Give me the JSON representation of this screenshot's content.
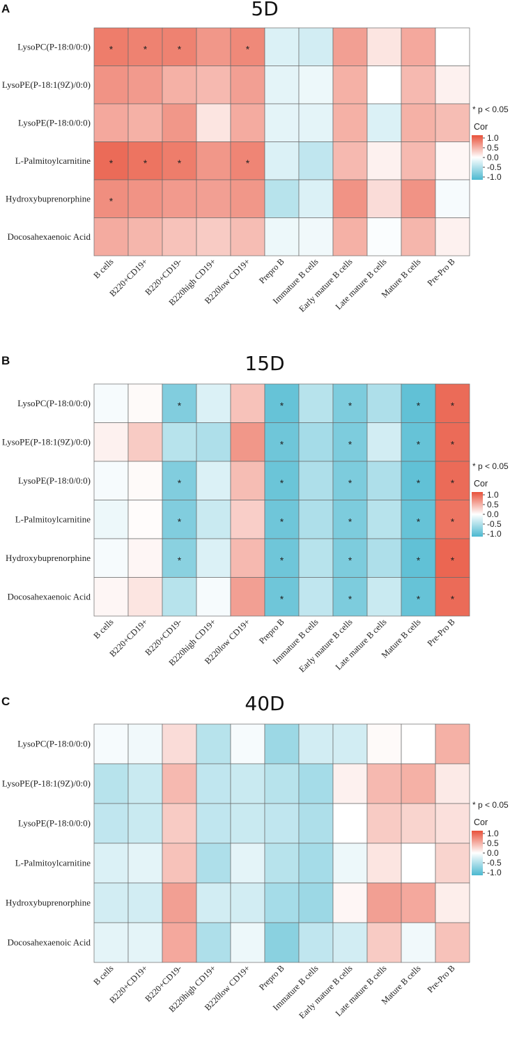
{
  "chart_data": [
    {
      "type": "heatmap",
      "panel": "A",
      "title": "5D",
      "rows": [
        "LysoPC(P-18:0/0:0)",
        "LysoPE(P-18:1(9Z)/0:0)",
        "LysoPE(P-18:0/0:0)",
        "L-Palmitoylcarnitine",
        "Hydroxybuprenorphine",
        "Docosahexaenoic Acid"
      ],
      "columns": [
        "B cells",
        "B220+CD19+",
        "B220+CD19-",
        "B220high CD19+",
        "B220low CD19+",
        "Prepro B",
        "Immature B cells",
        "Early mature B cells",
        "Late mature B cells",
        "Mature B cells",
        "Pre-Pro B"
      ],
      "values": [
        [
          0.75,
          0.72,
          0.72,
          0.6,
          0.68,
          -0.2,
          -0.25,
          0.55,
          0.15,
          0.5,
          0.0
        ],
        [
          0.62,
          0.58,
          0.45,
          0.4,
          0.55,
          -0.15,
          -0.1,
          0.45,
          0.0,
          0.4,
          0.08
        ],
        [
          0.5,
          0.45,
          0.6,
          0.15,
          0.48,
          -0.15,
          -0.15,
          0.45,
          -0.2,
          0.45,
          0.38
        ],
        [
          0.85,
          0.8,
          0.75,
          0.6,
          0.7,
          -0.2,
          -0.35,
          0.4,
          0.08,
          0.4,
          0.05
        ],
        [
          0.65,
          0.62,
          0.58,
          0.55,
          0.6,
          -0.4,
          -0.2,
          0.62,
          0.2,
          0.62,
          -0.05
        ],
        [
          0.48,
          0.42,
          0.35,
          0.3,
          0.38,
          -0.1,
          -0.08,
          0.45,
          -0.03,
          0.42,
          0.08
        ]
      ],
      "significant": [
        [
          true,
          true,
          true,
          false,
          true,
          false,
          false,
          false,
          false,
          false,
          false
        ],
        [
          false,
          false,
          false,
          false,
          false,
          false,
          false,
          false,
          false,
          false,
          false
        ],
        [
          false,
          false,
          false,
          false,
          false,
          false,
          false,
          false,
          false,
          false,
          false
        ],
        [
          true,
          true,
          true,
          false,
          true,
          false,
          false,
          false,
          false,
          false,
          false
        ],
        [
          true,
          false,
          false,
          false,
          false,
          false,
          false,
          false,
          false,
          false,
          false
        ],
        [
          false,
          false,
          false,
          false,
          false,
          false,
          false,
          false,
          false,
          false,
          false
        ]
      ],
      "significance_note": "* p < 0.05",
      "legend": {
        "title": "Cor",
        "ticks": [
          "1.0",
          "0.5",
          "0.0",
          "-0.5",
          "-1.0"
        ],
        "placement": "right"
      },
      "colors": {
        "high": "#e8513a",
        "mid": "#ffffff",
        "low": "#4bb8d0"
      }
    },
    {
      "type": "heatmap",
      "panel": "B",
      "title": "15D",
      "rows": [
        "LysoPC(P-18:0/0:0)",
        "LysoPE(P-18:1(9Z)/0:0)",
        "LysoPE(P-18:0/0:0)",
        "L-Palmitoylcarnitine",
        "Hydroxybuprenorphine",
        "Docosahexaenoic Acid"
      ],
      "columns": [
        "B cells",
        "B220+CD19+",
        "B220+CD19-",
        "B220high CD19+",
        "B220low CD19+",
        "Prepro B",
        "Immature B cells",
        "Early mature B cells",
        "Late mature B cells",
        "Mature B cells",
        "Pre-Pro B"
      ],
      "values": [
        [
          -0.05,
          0.03,
          -0.7,
          -0.2,
          0.35,
          -0.85,
          -0.4,
          -0.72,
          -0.45,
          -0.88,
          0.85
        ],
        [
          0.08,
          0.3,
          -0.4,
          -0.45,
          0.6,
          -0.8,
          -0.5,
          -0.72,
          -0.25,
          -0.85,
          0.85
        ],
        [
          -0.05,
          0.03,
          -0.7,
          -0.2,
          0.38,
          -0.82,
          -0.45,
          -0.72,
          -0.45,
          -0.88,
          0.85
        ],
        [
          -0.1,
          0.02,
          -0.7,
          -0.3,
          0.28,
          -0.8,
          -0.45,
          -0.72,
          -0.4,
          -0.85,
          0.8
        ],
        [
          -0.05,
          0.05,
          -0.65,
          -0.2,
          0.4,
          -0.8,
          -0.4,
          -0.72,
          -0.45,
          -0.88,
          0.88
        ],
        [
          0.05,
          0.15,
          -0.4,
          -0.05,
          0.55,
          -0.8,
          -0.35,
          -0.72,
          -0.3,
          -0.85,
          0.85
        ]
      ],
      "significant": [
        [
          false,
          false,
          true,
          false,
          false,
          true,
          false,
          true,
          false,
          true,
          true
        ],
        [
          false,
          false,
          false,
          false,
          false,
          true,
          false,
          true,
          false,
          true,
          true
        ],
        [
          false,
          false,
          true,
          false,
          false,
          true,
          false,
          true,
          false,
          true,
          true
        ],
        [
          false,
          false,
          true,
          false,
          false,
          true,
          false,
          true,
          false,
          true,
          true
        ],
        [
          false,
          false,
          true,
          false,
          false,
          true,
          false,
          true,
          false,
          true,
          true
        ],
        [
          false,
          false,
          false,
          false,
          false,
          true,
          false,
          true,
          false,
          true,
          true
        ]
      ],
      "significance_note": "* p < 0.05",
      "legend": {
        "title": "Cor",
        "ticks": [
          "1.0",
          "0.5",
          "0.0",
          "-0.5",
          "-1.0"
        ],
        "placement": "right"
      },
      "colors": {
        "high": "#e8513a",
        "mid": "#ffffff",
        "low": "#4bb8d0"
      }
    },
    {
      "type": "heatmap",
      "panel": "C",
      "title": "40D",
      "rows": [
        "LysoPC(P-18:0/0:0)",
        "LysoPE(P-18:1(9Z)/0:0)",
        "LysoPE(P-18:0/0:0)",
        "L-Palmitoylcarnitine",
        "Hydroxybuprenorphine",
        "Docosahexaenoic Acid"
      ],
      "columns": [
        "B cells",
        "B220+CD19+",
        "B220+CD19-",
        "B220high CD19+",
        "B220low CD19+",
        "Prepro B",
        "Immature B cells",
        "Early mature B cells",
        "Late mature B cells",
        "Mature B cells",
        "Pre-Pro B"
      ],
      "values": [
        [
          -0.05,
          -0.08,
          0.2,
          -0.4,
          -0.05,
          -0.55,
          -0.25,
          -0.25,
          0.03,
          0.0,
          0.45
        ],
        [
          -0.4,
          -0.3,
          0.4,
          -0.35,
          -0.3,
          -0.4,
          -0.5,
          0.08,
          0.4,
          0.45,
          0.12
        ],
        [
          -0.35,
          -0.3,
          0.3,
          -0.35,
          -0.3,
          -0.35,
          -0.45,
          0.0,
          0.3,
          0.25,
          0.18
        ],
        [
          -0.2,
          -0.15,
          0.35,
          -0.45,
          -0.15,
          -0.4,
          -0.5,
          -0.1,
          0.15,
          0.0,
          0.25
        ],
        [
          -0.25,
          -0.25,
          0.55,
          -0.25,
          -0.25,
          -0.5,
          -0.55,
          0.05,
          0.55,
          0.5,
          0.1
        ],
        [
          -0.15,
          -0.15,
          0.5,
          -0.45,
          -0.1,
          -0.65,
          -0.35,
          -0.25,
          0.3,
          -0.08,
          0.35
        ]
      ],
      "significant": [
        [
          false,
          false,
          false,
          false,
          false,
          false,
          false,
          false,
          false,
          false,
          false
        ],
        [
          false,
          false,
          false,
          false,
          false,
          false,
          false,
          false,
          false,
          false,
          false
        ],
        [
          false,
          false,
          false,
          false,
          false,
          false,
          false,
          false,
          false,
          false,
          false
        ],
        [
          false,
          false,
          false,
          false,
          false,
          false,
          false,
          false,
          false,
          false,
          false
        ],
        [
          false,
          false,
          false,
          false,
          false,
          false,
          false,
          false,
          false,
          false,
          false
        ],
        [
          false,
          false,
          false,
          false,
          false,
          false,
          false,
          false,
          false,
          false,
          false
        ]
      ],
      "significance_note": "* p < 0.05",
      "legend": {
        "title": "Cor",
        "ticks": [
          "1.0",
          "0.5",
          "0.0",
          "-0.5",
          "-1.0"
        ],
        "placement": "right"
      },
      "colors": {
        "high": "#e8513a",
        "mid": "#ffffff",
        "low": "#4bb8d0"
      }
    }
  ]
}
